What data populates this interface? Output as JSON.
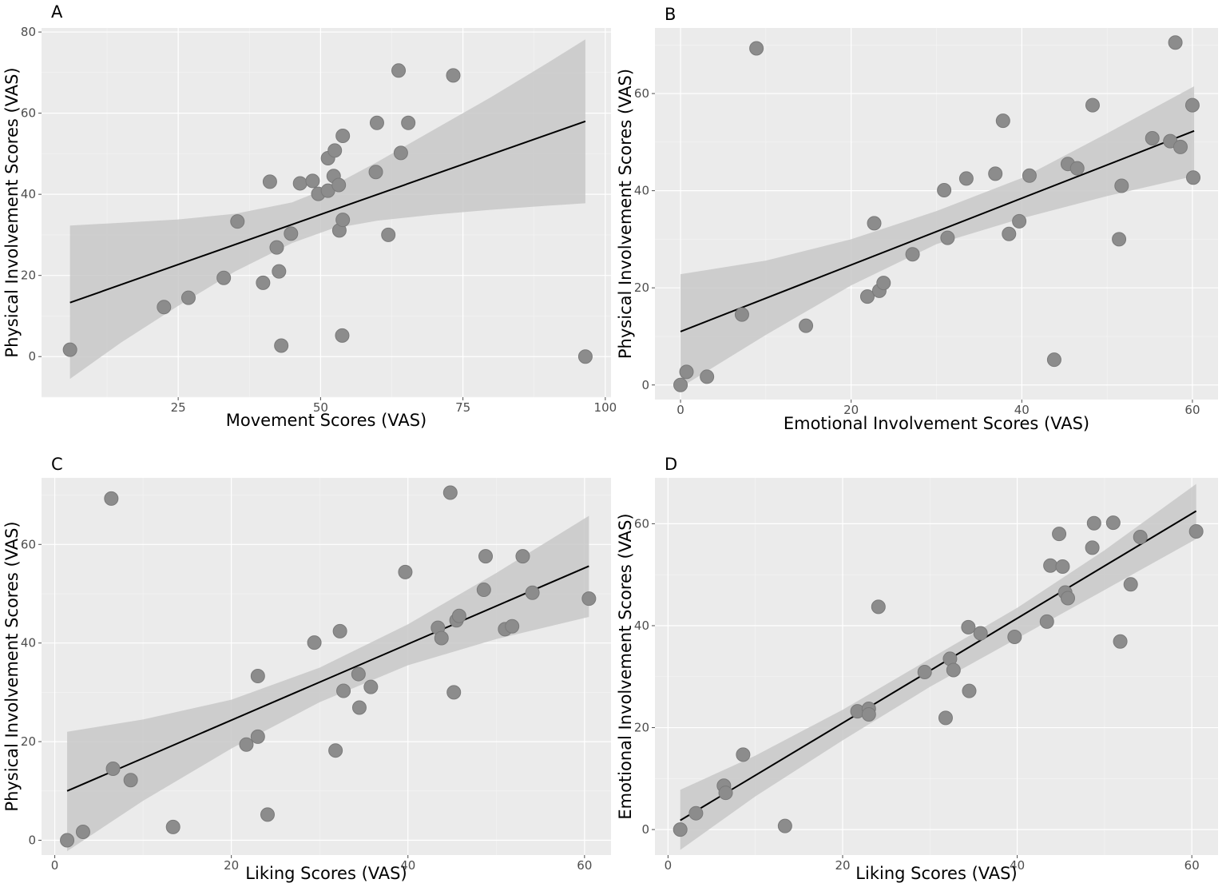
{
  "chart_data": [
    {
      "panel": "A",
      "type": "scatter",
      "xlabel": "Movement Scores (VAS)",
      "ylabel": "Physical Involvement Scores (VAS)",
      "xlim": [
        1,
        101
      ],
      "ylim": [
        -10,
        81
      ],
      "xticks": [
        25,
        50,
        75,
        100
      ],
      "yticks": [
        0,
        20,
        40,
        60,
        80
      ],
      "grid": true,
      "fit": {
        "x0": 6,
        "y0": 13.3,
        "x1": 96.5,
        "y1": 58.0
      },
      "band": [
        {
          "x": 6,
          "lo": -5.5,
          "hi": 32.3
        },
        {
          "x": 15,
          "lo": 3.5,
          "hi": 33.0
        },
        {
          "x": 25,
          "lo": 12.5,
          "hi": 33.8
        },
        {
          "x": 35,
          "lo": 21.0,
          "hi": 35.2
        },
        {
          "x": 45,
          "lo": 28.0,
          "hi": 38.0
        },
        {
          "x": 52,
          "lo": 31.5,
          "hi": 42.0
        },
        {
          "x": 60,
          "lo": 33.5,
          "hi": 48.0
        },
        {
          "x": 70,
          "lo": 35.0,
          "hi": 56.0
        },
        {
          "x": 80,
          "lo": 36.2,
          "hi": 64.0
        },
        {
          "x": 90,
          "lo": 37.2,
          "hi": 72.5
        },
        {
          "x": 96.5,
          "lo": 37.8,
          "hi": 78.2
        }
      ],
      "points": [
        [
          6,
          1.7
        ],
        [
          22.5,
          12.2
        ],
        [
          26.8,
          14.5
        ],
        [
          33,
          19.4
        ],
        [
          35.4,
          33.3
        ],
        [
          39.9,
          18.2
        ],
        [
          41.1,
          43.1
        ],
        [
          42.3,
          26.9
        ],
        [
          42.7,
          21.0
        ],
        [
          43.1,
          2.7
        ],
        [
          44.8,
          30.3
        ],
        [
          46.4,
          42.7
        ],
        [
          48.6,
          43.3
        ],
        [
          49.6,
          40.1
        ],
        [
          51.3,
          40.9
        ],
        [
          51.3,
          48.9
        ],
        [
          52.3,
          44.5
        ],
        [
          52.5,
          50.8
        ],
        [
          53.2,
          42.3
        ],
        [
          53.3,
          31.1
        ],
        [
          53.9,
          33.7
        ],
        [
          53.9,
          54.4
        ],
        [
          53.8,
          5.2
        ],
        [
          59.7,
          45.5
        ],
        [
          59.9,
          57.6
        ],
        [
          61.9,
          30.0
        ],
        [
          63.7,
          70.5
        ],
        [
          64.1,
          50.2
        ],
        [
          65.4,
          57.6
        ],
        [
          73.3,
          69.3
        ],
        [
          96.5,
          0.0
        ]
      ]
    },
    {
      "panel": "B",
      "type": "scatter",
      "xlabel": "Emotional Involvement Scores (VAS)",
      "ylabel": "Physical Involvement Scores (VAS)",
      "xlim": [
        -3,
        63
      ],
      "ylim": [
        -3,
        73.5
      ],
      "xticks": [
        0,
        20,
        40,
        60
      ],
      "yticks": [
        0,
        20,
        40,
        60
      ],
      "grid": true,
      "fit": {
        "x0": 0.0,
        "y0": 11.0,
        "x1": 60.2,
        "y1": 52.3
      },
      "band": [
        {
          "x": 0.0,
          "lo": -0.5,
          "hi": 22.8
        },
        {
          "x": 10,
          "lo": 10.3,
          "hi": 25.6
        },
        {
          "x": 20,
          "lo": 20.5,
          "hi": 30.0
        },
        {
          "x": 30,
          "lo": 29.0,
          "hi": 35.8
        },
        {
          "x": 40,
          "lo": 34.3,
          "hi": 42.6
        },
        {
          "x": 50,
          "lo": 38.9,
          "hi": 51.8
        },
        {
          "x": 60.2,
          "lo": 43.0,
          "hi": 61.5
        }
      ],
      "points": [
        [
          0,
          0.0
        ],
        [
          0.7,
          2.7
        ],
        [
          3.1,
          1.7
        ],
        [
          7.2,
          14.5
        ],
        [
          8.9,
          69.3
        ],
        [
          14.7,
          12.2
        ],
        [
          21.9,
          18.2
        ],
        [
          22.7,
          33.3
        ],
        [
          23.3,
          19.4
        ],
        [
          23.8,
          21.0
        ],
        [
          27.2,
          26.9
        ],
        [
          30.9,
          40.1
        ],
        [
          31.3,
          30.3
        ],
        [
          33.5,
          42.5
        ],
        [
          36.9,
          43.5
        ],
        [
          37.8,
          54.4
        ],
        [
          38.5,
          31.1
        ],
        [
          39.7,
          33.7
        ],
        [
          40.9,
          43.1
        ],
        [
          43.8,
          5.2
        ],
        [
          45.4,
          45.5
        ],
        [
          46.5,
          44.6
        ],
        [
          48.3,
          57.6
        ],
        [
          51.4,
          30.0
        ],
        [
          51.7,
          41.0
        ],
        [
          55.3,
          50.8
        ],
        [
          57.4,
          50.2
        ],
        [
          58.0,
          70.5
        ],
        [
          58.6,
          49.0
        ],
        [
          60.0,
          57.6
        ],
        [
          60.1,
          42.7
        ]
      ]
    },
    {
      "panel": "C",
      "type": "scatter",
      "xlabel": "Liking Scores (VAS)",
      "ylabel": "Physical Involvement Scores (VAS)",
      "xlim": [
        -1.5,
        63
      ],
      "ylim": [
        -3,
        73.5
      ],
      "xticks": [
        0,
        20,
        40,
        60
      ],
      "yticks": [
        0,
        20,
        40,
        60
      ],
      "grid": true,
      "fit": {
        "x0": 1.4,
        "y0": 10.0,
        "x1": 60.5,
        "y1": 55.6
      },
      "band": [
        {
          "x": 1.4,
          "lo": -2.2,
          "hi": 22.0
        },
        {
          "x": 10,
          "lo": 8.0,
          "hi": 24.5
        },
        {
          "x": 20,
          "lo": 18.6,
          "hi": 28.5
        },
        {
          "x": 30,
          "lo": 28.0,
          "hi": 35.0
        },
        {
          "x": 40,
          "lo": 35.5,
          "hi": 43.8
        },
        {
          "x": 50,
          "lo": 40.8,
          "hi": 54.2
        },
        {
          "x": 60.5,
          "lo": 45.3,
          "hi": 65.8
        }
      ],
      "points": [
        [
          1.4,
          0.0
        ],
        [
          3.2,
          1.7
        ],
        [
          6.4,
          69.3
        ],
        [
          6.6,
          14.5
        ],
        [
          8.6,
          12.2
        ],
        [
          13.4,
          2.7
        ],
        [
          21.7,
          19.4
        ],
        [
          23.0,
          33.3
        ],
        [
          23.0,
          21.0
        ],
        [
          24.1,
          5.2
        ],
        [
          29.4,
          40.1
        ],
        [
          31.8,
          18.2
        ],
        [
          32.3,
          42.4
        ],
        [
          32.7,
          30.3
        ],
        [
          34.4,
          33.7
        ],
        [
          34.5,
          26.9
        ],
        [
          35.8,
          31.1
        ],
        [
          39.7,
          54.4
        ],
        [
          43.4,
          43.1
        ],
        [
          43.8,
          41.0
        ],
        [
          44.8,
          70.5
        ],
        [
          45.2,
          30.0
        ],
        [
          45.5,
          44.6
        ],
        [
          45.8,
          45.5
        ],
        [
          48.6,
          50.8
        ],
        [
          48.8,
          57.6
        ],
        [
          51.0,
          42.8
        ],
        [
          51.8,
          43.4
        ],
        [
          53.0,
          57.6
        ],
        [
          54.1,
          50.2
        ],
        [
          60.5,
          49.0
        ]
      ]
    },
    {
      "panel": "D",
      "type": "scatter",
      "xlabel": "Liking Scores (VAS)",
      "ylabel": "Emotional Involvement Scores (VAS)",
      "xlim": [
        -1.5,
        63
      ],
      "ylim": [
        -5,
        69
      ],
      "xticks": [
        0,
        20,
        40,
        60
      ],
      "yticks": [
        0,
        20,
        40,
        60
      ],
      "grid": true,
      "fit": {
        "x0": 1.4,
        "y0": 1.8,
        "x1": 60.5,
        "y1": 62.5
      },
      "band": [
        {
          "x": 1.4,
          "lo": -4.0,
          "hi": 7.8
        },
        {
          "x": 10,
          "lo": 6.5,
          "hi": 14.5
        },
        {
          "x": 20,
          "lo": 17.5,
          "hi": 23.5
        },
        {
          "x": 30,
          "lo": 28.0,
          "hi": 33.5
        },
        {
          "x": 40,
          "lo": 37.5,
          "hi": 43.5
        },
        {
          "x": 50,
          "lo": 47.0,
          "hi": 54.8
        },
        {
          "x": 60.5,
          "lo": 57.0,
          "hi": 67.8
        }
      ],
      "points": [
        [
          1.4,
          0.0
        ],
        [
          3.2,
          3.2
        ],
        [
          6.4,
          8.6
        ],
        [
          6.6,
          7.2
        ],
        [
          8.6,
          14.7
        ],
        [
          13.4,
          0.7
        ],
        [
          21.7,
          23.2
        ],
        [
          23.0,
          23.7
        ],
        [
          23.0,
          22.6
        ],
        [
          24.1,
          43.7
        ],
        [
          29.4,
          30.9
        ],
        [
          31.8,
          21.9
        ],
        [
          32.3,
          33.5
        ],
        [
          32.7,
          31.3
        ],
        [
          34.4,
          39.7
        ],
        [
          34.5,
          27.2
        ],
        [
          35.8,
          38.5
        ],
        [
          39.7,
          37.8
        ],
        [
          43.4,
          40.8
        ],
        [
          43.8,
          51.8
        ],
        [
          44.8,
          58.0
        ],
        [
          45.2,
          51.6
        ],
        [
          45.5,
          46.5
        ],
        [
          45.8,
          45.4
        ],
        [
          48.6,
          55.3
        ],
        [
          48.8,
          60.1
        ],
        [
          51.0,
          60.2
        ],
        [
          51.8,
          36.9
        ],
        [
          53.0,
          48.1
        ],
        [
          54.1,
          57.4
        ],
        [
          60.5,
          58.5
        ]
      ]
    }
  ]
}
